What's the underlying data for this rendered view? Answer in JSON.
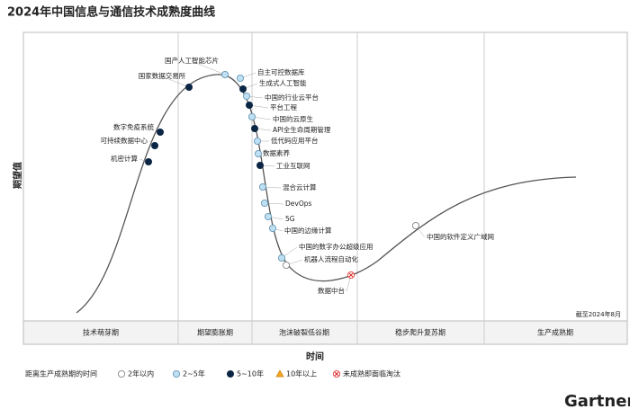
{
  "title": "2024年中国信息与通信技术成熟度曲线",
  "y_axis_label": "期望值",
  "x_axis_label": "时间",
  "note": "截至2024年8月",
  "brand": "Gartner",
  "phases": [
    "技术萌芽期",
    "期望膨胀期",
    "泡沫破裂低谷期",
    "稳步爬升复苏期",
    "生产成熟期"
  ],
  "legend": {
    "title": "距离生产成熟期的时间",
    "items": [
      "2年以内",
      "2~5年",
      "5~10年",
      "10年以上",
      "未成熟即面临淘汰"
    ]
  },
  "technologies": [
    {
      "label": "国产人工智能芯片",
      "maturity": 1
    },
    {
      "label": "国家数据交易所",
      "maturity": 2
    },
    {
      "label": "自主可控数据库",
      "maturity": 1
    },
    {
      "label": "生成式人工智能",
      "maturity": 2
    },
    {
      "label": "中国的行业云平台",
      "maturity": 1
    },
    {
      "label": "平台工程",
      "maturity": 2
    },
    {
      "label": "中国的云原生",
      "maturity": 1
    },
    {
      "label": "API全生命周期管理",
      "maturity": 2
    },
    {
      "label": "低代码应用平台",
      "maturity": 1
    },
    {
      "label": "数据素养",
      "maturity": 1
    },
    {
      "label": "工业互联网",
      "maturity": 2
    },
    {
      "label": "混合云计算",
      "maturity": 1
    },
    {
      "label": "DevOps",
      "maturity": 1
    },
    {
      "label": "5G",
      "maturity": 1
    },
    {
      "label": "中国的边缘计算",
      "maturity": 1
    },
    {
      "label": "中国的数字办公超级应用",
      "maturity": 1
    },
    {
      "label": "机器人流程自动化",
      "maturity": 0
    },
    {
      "label": "数据中台",
      "maturity": 4
    },
    {
      "label": "中国的软件定义广域网",
      "maturity": 0
    },
    {
      "label": "数字免疫系统",
      "maturity": 2
    },
    {
      "label": "可持续数据中心",
      "maturity": 2
    },
    {
      "label": "机密计算",
      "maturity": 2
    }
  ]
}
